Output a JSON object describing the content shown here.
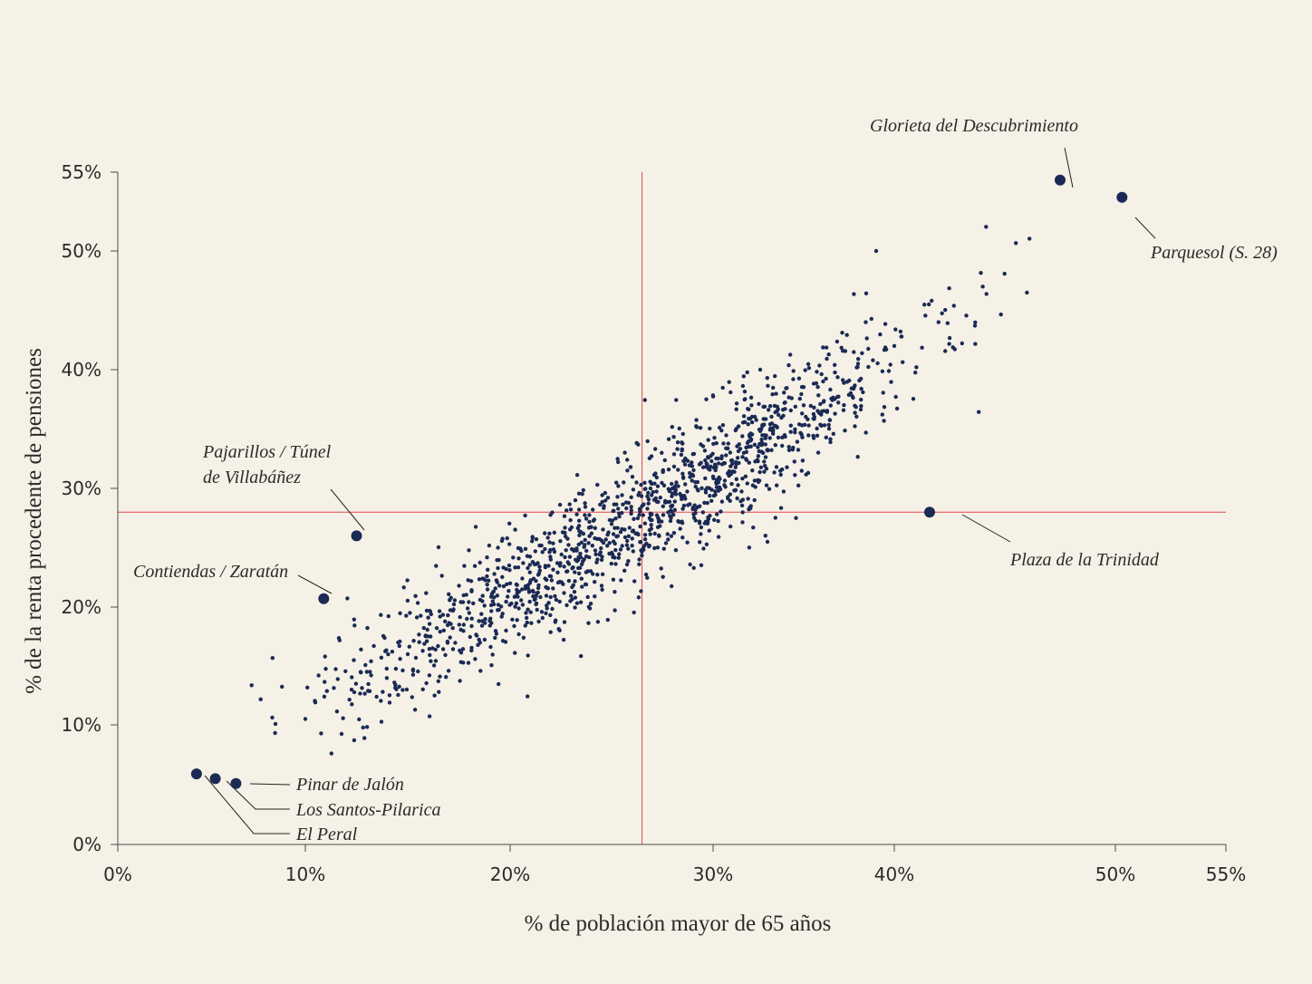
{
  "chart_data": {
    "type": "scatter",
    "xlabel": "% de población mayor de 65 años",
    "ylabel": "% de la renta procedente de pensiones",
    "xlim": [
      0,
      55
    ],
    "ylim": [
      0,
      55
    ],
    "x_ticks": [
      "0%",
      "10%",
      "20%",
      "30%",
      "40%",
      "50%",
      "55%"
    ],
    "y_ticks": [
      "0%",
      "10%",
      "20%",
      "30%",
      "40%",
      "50%",
      "55%"
    ],
    "grid": false,
    "reference_lines": {
      "x": 26.5,
      "y": 28.0
    },
    "colors": {
      "points": "#1b2a55",
      "reference": "#e3454f",
      "background": "#f5f1e6"
    },
    "point_cloud": {
      "count": 1400,
      "slope": 1.0,
      "intercept": 1.2,
      "x_range": [
        6.0,
        46.5
      ],
      "residual_sd": 2.8,
      "sample_points": [
        [
          10.0,
          10.5
        ],
        [
          13.0,
          14.5
        ],
        [
          15.0,
          16.0
        ],
        [
          18.0,
          19.5
        ],
        [
          20.0,
          22.0
        ],
        [
          22.0,
          24.0
        ],
        [
          25.0,
          27.0
        ],
        [
          26.5,
          28.5
        ],
        [
          28.0,
          30.0
        ],
        [
          30.0,
          31.0
        ],
        [
          32.0,
          34.5
        ],
        [
          35.0,
          37.0
        ],
        [
          38.0,
          40.5
        ],
        [
          40.0,
          42.0
        ],
        [
          42.0,
          44.0
        ],
        [
          44.0,
          47.0
        ],
        [
          45.5,
          50.5
        ],
        [
          39.0,
          50.0
        ],
        [
          46.0,
          46.5
        ],
        [
          33.0,
          25.5
        ]
      ]
    },
    "highlighted": [
      {
        "name": "Glorieta del Descubrimiento",
        "x": 47.5,
        "y": 54.5
      },
      {
        "name": "Parquesol (S. 28)",
        "x": 50.3,
        "y": 53.4
      },
      {
        "name": "Plaza de la Trinidad",
        "x": 41.6,
        "y": 28.0
      },
      {
        "name": "Pajarillos / Túnel de Villabáñez",
        "x": 12.5,
        "y": 26.0
      },
      {
        "name": "Contiendas / Zaratán",
        "x": 10.9,
        "y": 20.7
      },
      {
        "name": "Pinar de Jalón",
        "x": 6.3,
        "y": 5.1
      },
      {
        "name": "Los Santos-Pilarica",
        "x": 5.2,
        "y": 5.5
      },
      {
        "name": "El Peral",
        "x": 4.2,
        "y": 5.9
      }
    ],
    "annotations": [
      {
        "lines": [
          "Glorieta del Descubrimiento"
        ]
      },
      {
        "lines": [
          "Parquesol (S. 28)"
        ]
      },
      {
        "lines": [
          "Plaza de la Trinidad"
        ]
      },
      {
        "lines": [
          "Pajarillos / Túnel",
          "de Villabáñez"
        ]
      },
      {
        "lines": [
          "Contiendas / Zaratán"
        ]
      },
      {
        "lines": [
          "Pinar de Jalón"
        ]
      },
      {
        "lines": [
          "Los Santos-Pilarica"
        ]
      },
      {
        "lines": [
          "El Peral"
        ]
      }
    ]
  }
}
